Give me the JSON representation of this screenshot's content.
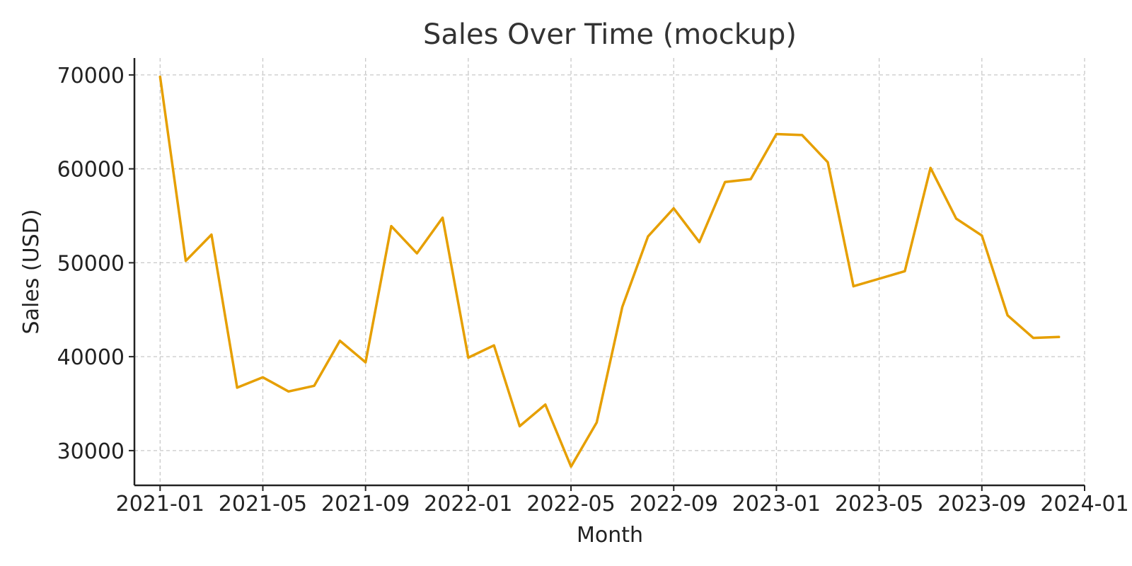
{
  "chart_data": {
    "type": "line",
    "title": "Sales Over Time (mockup)",
    "xlabel": "Month",
    "ylabel": "Sales (USD)",
    "x_ticks": [
      "2021-01",
      "2021-05",
      "2021-09",
      "2022-01",
      "2022-05",
      "2022-09",
      "2023-01",
      "2023-05",
      "2023-09",
      "2024-01"
    ],
    "y_ticks": [
      30000,
      40000,
      50000,
      60000,
      70000
    ],
    "xlim": [
      "2020-12",
      "2024-01"
    ],
    "ylim": [
      26300,
      71800
    ],
    "grid": true,
    "line_color": "#E69F00",
    "x": [
      "2021-01",
      "2021-02",
      "2021-03",
      "2021-04",
      "2021-05",
      "2021-06",
      "2021-07",
      "2021-08",
      "2021-09",
      "2021-10",
      "2021-11",
      "2021-12",
      "2022-01",
      "2022-02",
      "2022-03",
      "2022-04",
      "2022-05",
      "2022-06",
      "2022-07",
      "2022-08",
      "2022-09",
      "2022-10",
      "2022-11",
      "2022-12",
      "2023-01",
      "2023-02",
      "2023-03",
      "2023-04",
      "2023-05",
      "2023-06",
      "2023-07",
      "2023-08",
      "2023-09",
      "2023-10",
      "2023-11",
      "2023-12"
    ],
    "values": [
      69800,
      50200,
      53000,
      36700,
      37800,
      36300,
      36900,
      41700,
      39400,
      53900,
      51000,
      54800,
      39900,
      41200,
      32600,
      34900,
      28300,
      33000,
      45300,
      52800,
      55800,
      52200,
      58600,
      58900,
      63700,
      63600,
      60700,
      47500,
      48300,
      49100,
      60100,
      54700,
      52900,
      44400,
      42000,
      42100
    ]
  }
}
